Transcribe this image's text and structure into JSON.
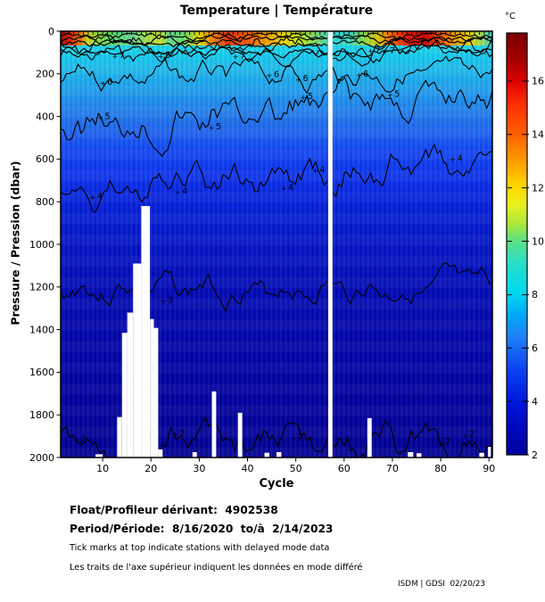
{
  "title": "Temperature | Température",
  "axes": {
    "x_label": "Cycle",
    "y_label": "Pressure / Pression (dbar)",
    "x_ticks": [
      10,
      20,
      30,
      40,
      50,
      60,
      70,
      80,
      90
    ],
    "y_ticks": [
      0,
      200,
      400,
      600,
      800,
      1000,
      1200,
      1400,
      1600,
      1800,
      2000
    ]
  },
  "colorbar": {
    "unit": "°C",
    "ticks": [
      16,
      14,
      12,
      10,
      8,
      6,
      4,
      2
    ],
    "value_min": 2.0,
    "value_max": 17.8,
    "stops": [
      [
        0,
        "#7c0000"
      ],
      [
        0.06,
        "#a00000"
      ],
      [
        0.115,
        "#dc0000"
      ],
      [
        0.17,
        "#ff3000"
      ],
      [
        0.24,
        "#ff6000"
      ],
      [
        0.3,
        "#ff9800"
      ],
      [
        0.365,
        "#ffd800"
      ],
      [
        0.41,
        "#e8f020"
      ],
      [
        0.455,
        "#a8e840"
      ],
      [
        0.49,
        "#60e080"
      ],
      [
        0.545,
        "#28e0c8"
      ],
      [
        0.615,
        "#00d8f0"
      ],
      [
        0.67,
        "#00a8f8"
      ],
      [
        0.72,
        "#2080f8"
      ],
      [
        0.8,
        "#0b42f0"
      ],
      [
        0.87,
        "#0018e0"
      ],
      [
        0.93,
        "#0008c0"
      ],
      [
        1,
        "#00009e"
      ]
    ]
  },
  "footer": {
    "float_label": "Float/Profileur dérivant:  4902538",
    "period_label": "Period/Période:  8/16/2020  to/à  2/14/2023",
    "note_en": "Tick marks at top indicate stations with delayed mode data",
    "note_fr": "Les traits de l'axe supérieur indiquent les données en mode différé",
    "credit": "ISDM | GDSI  02/20/23"
  },
  "chart_data": {
    "type": "heatmap",
    "title": "Temperature | Température",
    "xlabel": "Cycle",
    "ylabel": "Pressure / Pression (dbar)",
    "x_range": [
      1,
      91
    ],
    "y_range": [
      0,
      2000
    ],
    "y_axis_reversed": true,
    "colormap": "jet",
    "value_unit": "°C",
    "value_range": [
      2,
      17.8
    ],
    "mean_profile": [
      [
        0,
        10.5
      ],
      [
        50,
        8.5
      ],
      [
        120,
        7
      ],
      [
        210,
        6
      ],
      [
        420,
        5
      ],
      [
        760,
        4
      ],
      [
        1215,
        3
      ],
      [
        1930,
        2
      ]
    ],
    "background_profile": [
      [
        0,
        "#38d8cc"
      ],
      [
        60,
        "#12d6e8"
      ],
      [
        110,
        "#18cdec"
      ],
      [
        200,
        "#1cb4ea"
      ],
      [
        300,
        "#2096ec"
      ],
      [
        420,
        "#2272ea"
      ],
      [
        560,
        "#1246f2"
      ],
      [
        680,
        "#0c32ea"
      ],
      [
        800,
        "#0522da"
      ],
      [
        1000,
        "#0314c4"
      ],
      [
        1250,
        "#0209b2"
      ],
      [
        1500,
        "#0103a6"
      ],
      [
        1750,
        "#01009c"
      ],
      [
        2000,
        "#000092"
      ]
    ],
    "surface_band": [
      [
        1.3,
        "#a00000"
      ],
      [
        3.5,
        "#e02800"
      ],
      [
        5.5,
        "#f07800"
      ],
      [
        7,
        "#c8d820"
      ],
      [
        9,
        "#90dc40"
      ],
      [
        12,
        "#58d868"
      ],
      [
        16,
        "#68dc98"
      ],
      [
        19,
        "#a0e048"
      ],
      [
        22,
        "#c8e030"
      ],
      [
        24,
        "#60d890"
      ],
      [
        27,
        "#70dc60"
      ],
      [
        30,
        "#e8d400"
      ],
      [
        33,
        "#f08000"
      ],
      [
        36,
        "#e83000"
      ],
      [
        40,
        "#f05800"
      ],
      [
        44,
        "#f0a000"
      ],
      [
        48,
        "#e8dc00"
      ],
      [
        52,
        "#a8e030"
      ],
      [
        55.5,
        "#60d890"
      ],
      [
        56.6,
        "#48d8b0"
      ],
      [
        57.7,
        "#28d4d0"
      ],
      [
        61,
        "#38dcc4"
      ],
      [
        64,
        "#88dc48"
      ],
      [
        67,
        "#e0c800"
      ],
      [
        70,
        "#f06000"
      ],
      [
        73,
        "#e81800"
      ],
      [
        77,
        "#d40000"
      ],
      [
        80,
        "#f05000"
      ],
      [
        83,
        "#f0a000"
      ],
      [
        86,
        "#e8d000"
      ],
      [
        88.5,
        "#98dc58"
      ],
      [
        90.7,
        "#30d0d0"
      ]
    ],
    "surface_squiggles": {
      "pressures": [
        20,
        38,
        58,
        95
      ],
      "amplitude": 25,
      "seeds": [
        11,
        12,
        13,
        14
      ]
    },
    "contour_levels": [
      {
        "level": 8,
        "base_pressure": 66,
        "slope": 0,
        "amplitude": 60,
        "seed": 8,
        "labels": [
          [
            23.5,
            112
          ]
        ]
      },
      {
        "level": 7,
        "base_pressure": 112,
        "slope": 0,
        "amplitude": 50,
        "seed": 7,
        "labels": [
          [
            14,
            113
          ],
          [
            39,
            116
          ],
          [
            67,
            88
          ],
          [
            70,
            92
          ]
        ]
      },
      {
        "level": 6,
        "base_pressure": 208,
        "slope": 0,
        "amplitude": 70,
        "seed": 6,
        "labels": [
          [
            11.5,
            238
          ],
          [
            46,
            203
          ],
          [
            52,
            222
          ],
          [
            64.5,
            201
          ]
        ]
      },
      {
        "level": 5,
        "base_pressure": 450,
        "slope": -1.7,
        "amplitude": 120,
        "seed": 5,
        "labels": [
          [
            11,
            400
          ],
          [
            34,
            447
          ],
          [
            53,
            305
          ],
          [
            71,
            295
          ]
        ]
      },
      {
        "level": 4,
        "base_pressure": 790,
        "slope": -2.1,
        "amplitude": 100,
        "seed": 4,
        "labels": [
          [
            9.4,
            775
          ],
          [
            27,
            752
          ],
          [
            49,
            732
          ],
          [
            55.5,
            650
          ],
          [
            84,
            597
          ]
        ]
      },
      {
        "level": 3,
        "base_pressure": 1215,
        "slope": 0,
        "amplitude": 80,
        "seed": 3,
        "labels": [
          [
            24,
            1262
          ]
        ]
      },
      {
        "level": 2,
        "base_pressure": 1932,
        "slope": 0,
        "amplitude": 110,
        "seed": 2,
        "labels": [
          [
            6,
            1915
          ],
          [
            26.5,
            1886
          ],
          [
            51,
            1905
          ],
          [
            81.5,
            1925
          ],
          [
            86.5,
            1892
          ]
        ]
      }
    ],
    "missing_data": [
      [
        8.5,
        10.0,
        1985
      ],
      [
        13.0,
        14.0,
        1810
      ],
      [
        14.0,
        15.1,
        1415
      ],
      [
        15.1,
        16.3,
        1320
      ],
      [
        16.3,
        18.0,
        1090
      ],
      [
        18.0,
        19.8,
        820
      ],
      [
        19.8,
        20.6,
        1350
      ],
      [
        20.6,
        21.5,
        1392
      ],
      [
        21.5,
        22.4,
        1962
      ],
      [
        28.6,
        29.5,
        1975
      ],
      [
        32.6,
        33.5,
        1690
      ],
      [
        38.0,
        38.9,
        1790
      ],
      [
        43.5,
        44.5,
        1978
      ],
      [
        46.0,
        47.0,
        1975
      ],
      [
        56.7,
        57.6,
        0
      ],
      [
        64.8,
        65.7,
        1815
      ],
      [
        73.2,
        74.3,
        1975
      ],
      [
        75.0,
        76.0,
        1980
      ],
      [
        88.0,
        89.0,
        1978
      ],
      [
        89.8,
        90.4,
        1950
      ]
    ],
    "top_tick_range": [
      2,
      90
    ]
  }
}
